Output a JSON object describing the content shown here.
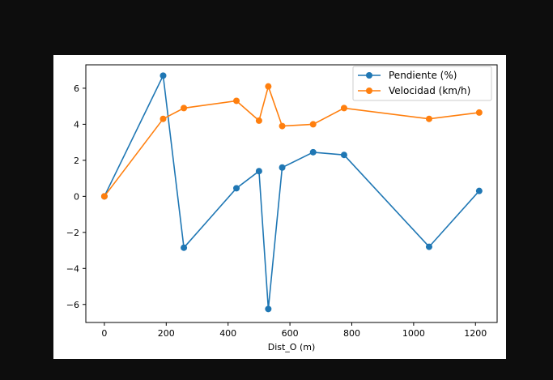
{
  "chart_data": {
    "type": "line",
    "xlabel": "Dist_O (m)",
    "ylabel": "",
    "xlim": [
      -60,
      1270
    ],
    "ylim": [
      -7,
      7.3
    ],
    "xticks": [
      0,
      200,
      400,
      600,
      800,
      1000,
      1200
    ],
    "yticks": [
      -6,
      -4,
      -2,
      0,
      2,
      4,
      6
    ],
    "xtick_labels": [
      "0",
      "200",
      "400",
      "600",
      "800",
      "1000",
      "1200"
    ],
    "ytick_labels": [
      "−6",
      "−4",
      "−2",
      "0",
      "2",
      "4",
      "6"
    ],
    "grid": false,
    "legend_position": "top-right",
    "series": [
      {
        "name": "Pendiente (%)",
        "color": "#1f77b4",
        "x": [
          0,
          190,
          257,
          427,
          500,
          530,
          575,
          675,
          775,
          1050,
          1212
        ],
        "y": [
          0,
          6.7,
          -2.85,
          0.45,
          1.4,
          -6.25,
          1.6,
          2.45,
          2.3,
          -2.8,
          0.3
        ]
      },
      {
        "name": "Velocidad (km/h)",
        "color": "#ff7f0e",
        "x": [
          0,
          190,
          257,
          427,
          500,
          530,
          575,
          675,
          775,
          1050,
          1212
        ],
        "y": [
          0,
          4.3,
          4.9,
          5.3,
          4.2,
          6.1,
          3.9,
          4.0,
          4.9,
          4.3,
          4.65
        ]
      }
    ]
  }
}
